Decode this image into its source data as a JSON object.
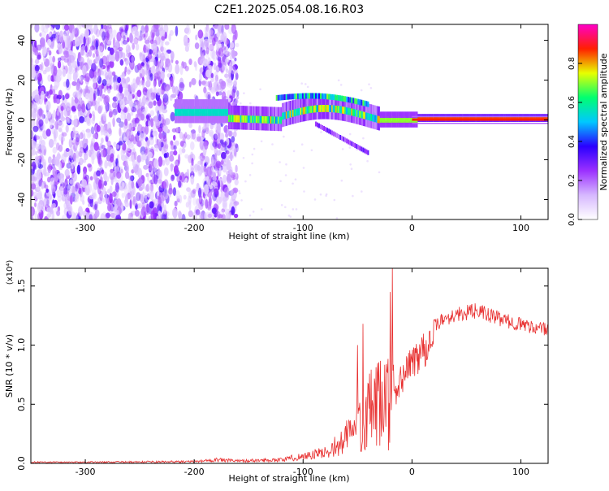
{
  "figure_title": "C2E1.2025.054.08.16.R03",
  "chart_data": [
    {
      "type": "heatmap",
      "xlabel": "Height of straight line (km)",
      "ylabel": "Frequency (Hz)",
      "xlim": [
        -350,
        125
      ],
      "ylim": [
        -50,
        48
      ],
      "xticks": [
        -300,
        -200,
        -100,
        0,
        100
      ],
      "yticks": [
        -40,
        -20,
        0,
        20,
        40
      ],
      "colorbar": {
        "label": "Normalized spectral amplitude",
        "range": [
          0.0,
          1.0
        ],
        "ticks": [
          "0.0",
          "0.2",
          "0.4",
          "0.6",
          "0.8"
        ],
        "colors": [
          "#ffffff",
          "#d6b8ff",
          "#9b30ff",
          "#2a00ff",
          "#00c8ff",
          "#00ff70",
          "#e8ff00",
          "#ff2000",
          "#ff00c8"
        ]
      },
      "features": {
        "noise_region_x": [
          -350,
          -160
        ],
        "gap_x": [
          -205,
          -195
        ],
        "stable_tone_from_x": 0,
        "stable_tone_freq": 0
      }
    },
    {
      "type": "line",
      "xlabel": "Height of straight line (km)",
      "ylabel": "SNR (10 * v/v)",
      "scale_label": "(x10⁴)",
      "xlim": [
        -350,
        125
      ],
      "ylim": [
        0,
        1.65
      ],
      "xticks": [
        -300,
        -200,
        -100,
        0,
        100
      ],
      "yticks": [
        "0.0",
        "0.5",
        "1.0",
        "1.5"
      ],
      "series_color": "#e83030",
      "envelope": {
        "x": [
          -350,
          -300,
          -250,
          -200,
          -180,
          -160,
          -120,
          -100,
          -80,
          -70,
          -60,
          -50,
          -40,
          -30,
          -20,
          -15,
          -10,
          0,
          10,
          20,
          30,
          40,
          50,
          60,
          70,
          80,
          90,
          100,
          110,
          125
        ],
        "y": [
          0.01,
          0.01,
          0.012,
          0.015,
          0.03,
          0.02,
          0.03,
          0.06,
          0.09,
          0.15,
          0.28,
          0.42,
          0.55,
          0.62,
          0.72,
          0.58,
          0.78,
          0.92,
          1.05,
          1.18,
          1.25,
          1.28,
          1.3,
          1.32,
          1.28,
          1.25,
          1.22,
          1.2,
          1.18,
          1.15
        ]
      },
      "spike_range_x": [
        -70,
        -15
      ],
      "max_spike": {
        "x": -18,
        "y": 1.65
      }
    }
  ]
}
